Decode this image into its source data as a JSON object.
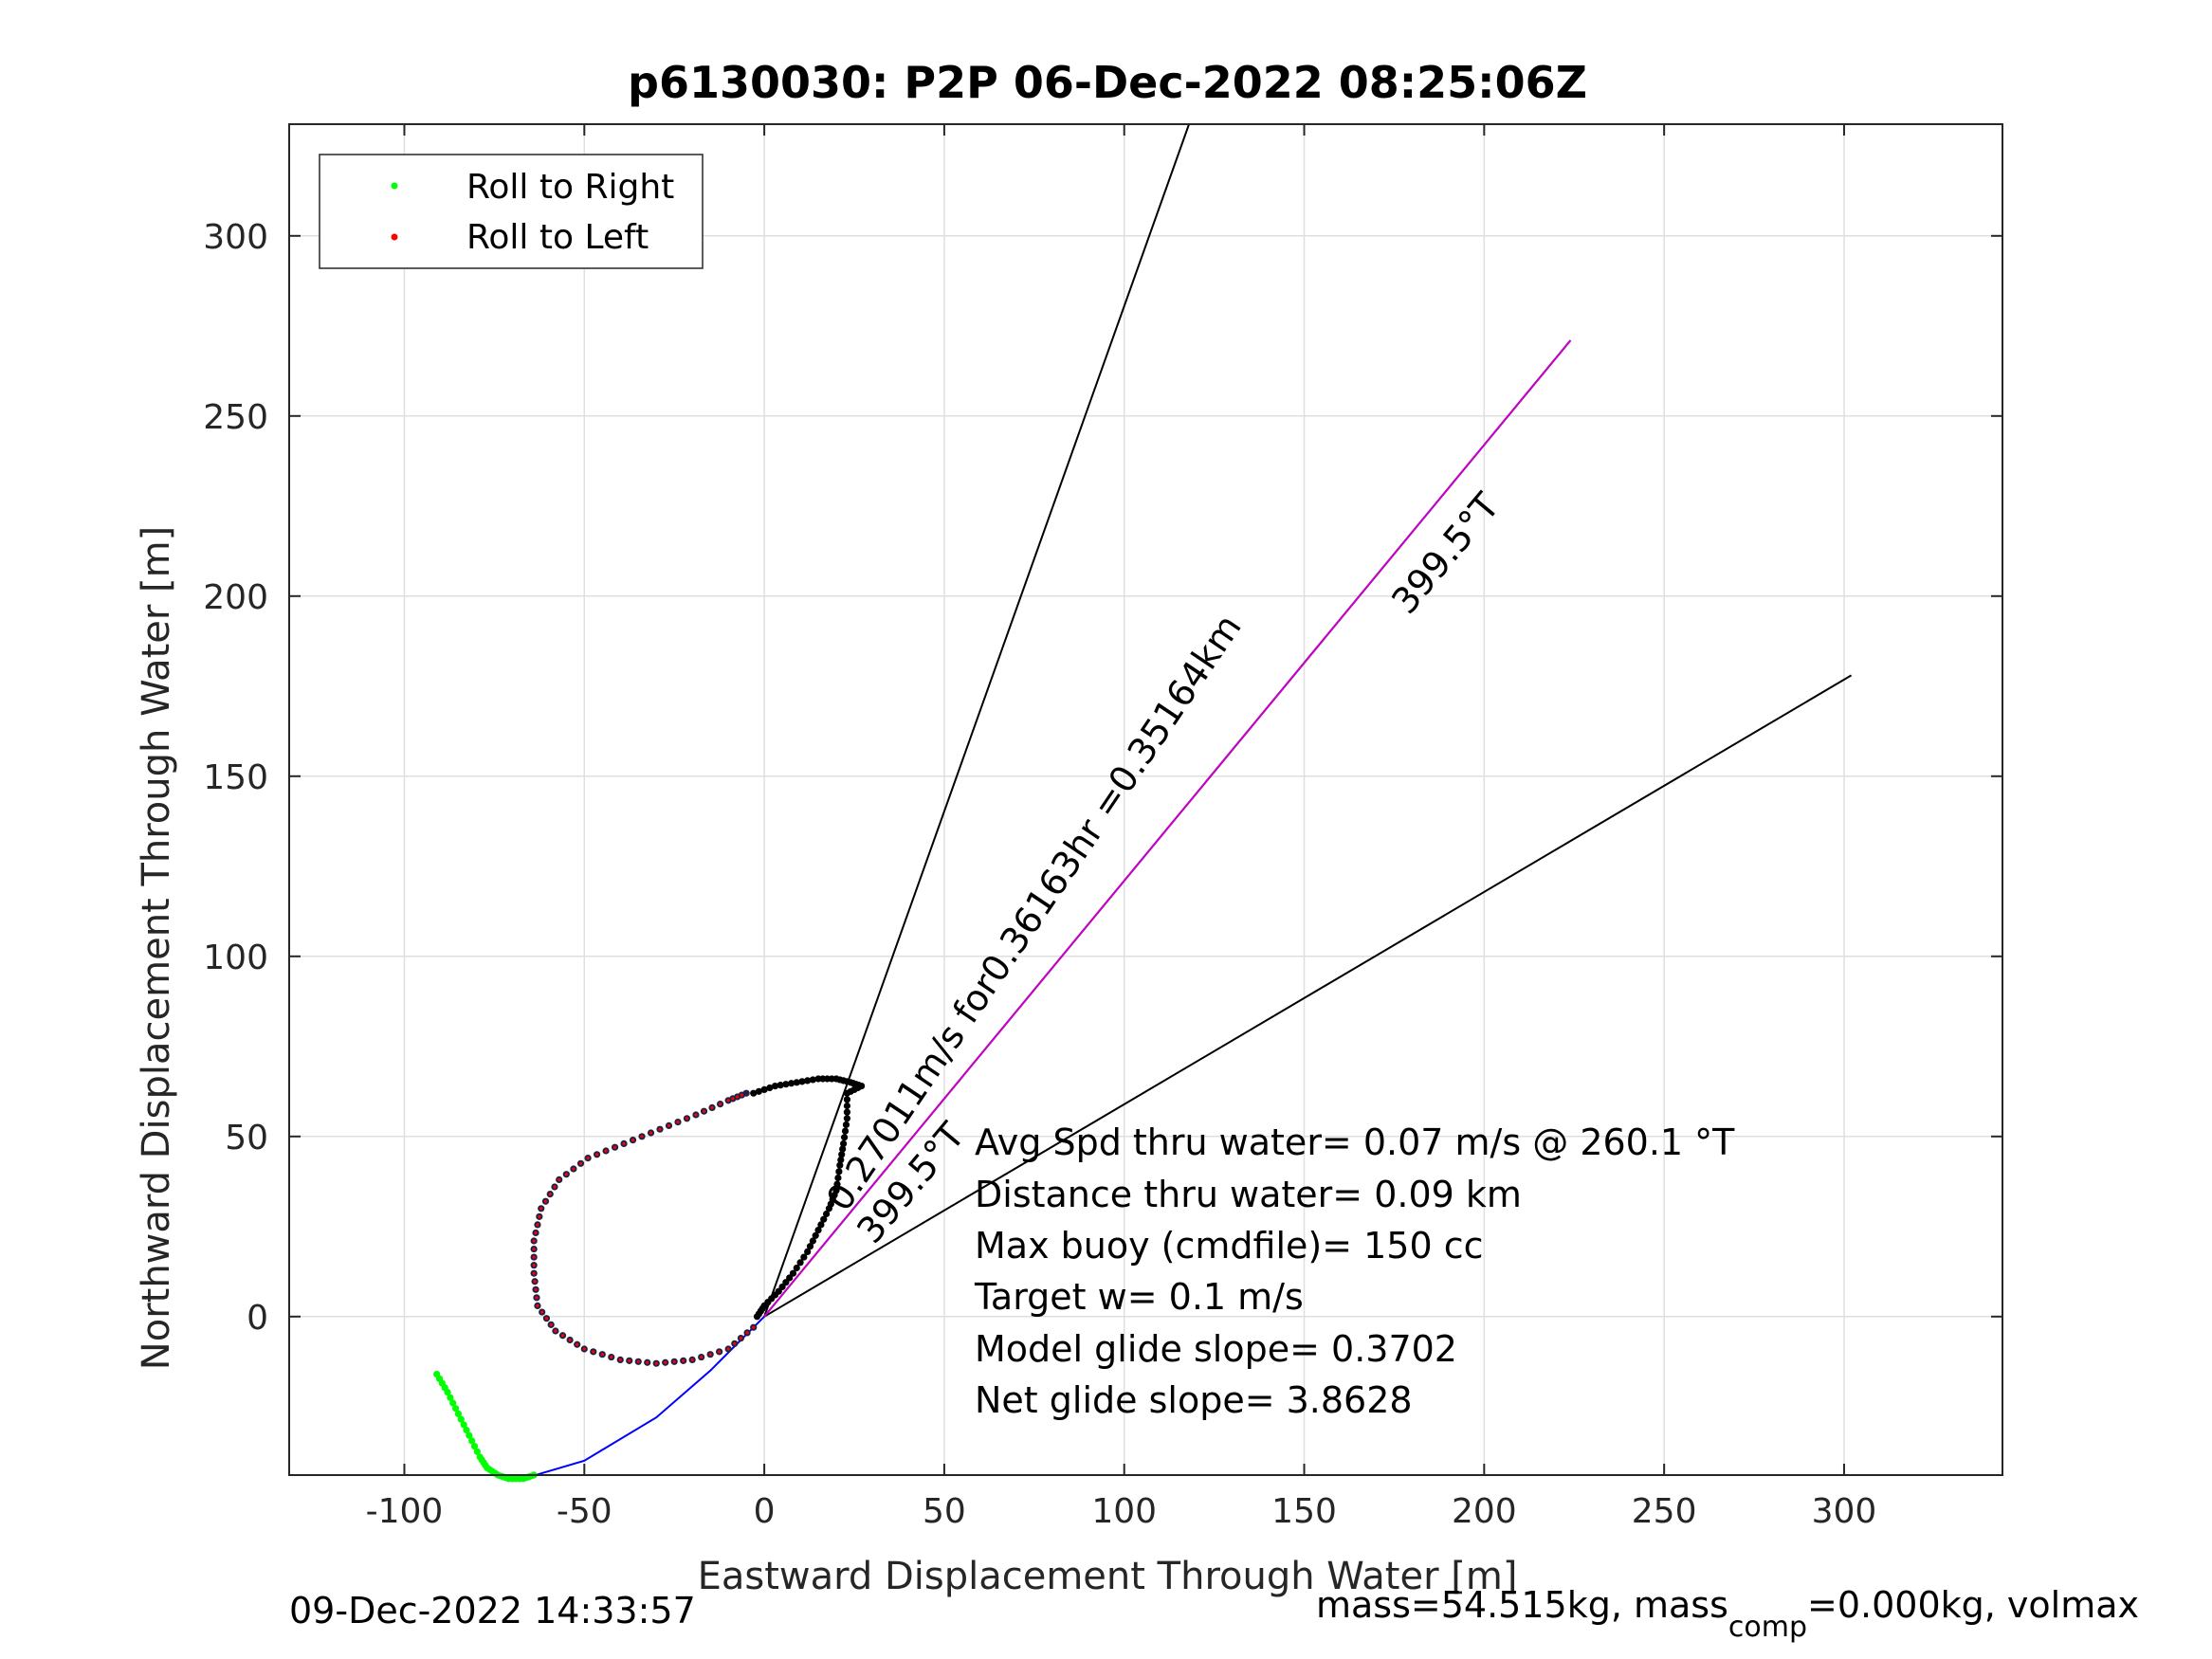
{
  "chart_data": {
    "type": "scatter",
    "title": "p6130030: P2P 06-Dec-2022 08:25:06Z",
    "xlabel": "Eastward Displacement Through Water [m]",
    "ylabel": "Northward Displacement Through Water [m]",
    "xlim": [
      -132,
      344
    ],
    "ylim": [
      -44,
      331
    ],
    "xticks": [
      -100,
      -50,
      0,
      50,
      100,
      150,
      200,
      250,
      300
    ],
    "yticks": [
      0,
      50,
      100,
      150,
      200,
      250,
      300
    ],
    "grid": true,
    "legend_position": "top-left",
    "legend": [
      {
        "label": "Roll to Right",
        "color": "#00ff00"
      },
      {
        "label": "Roll to Left",
        "color": "#ff0000"
      }
    ],
    "series": [
      {
        "name": "Roll to Right",
        "color": "#00ff00",
        "points": [
          [
            -91,
            -16
          ],
          [
            -88,
            -21
          ],
          [
            -85,
            -27
          ],
          [
            -82,
            -33
          ],
          [
            -79,
            -39
          ],
          [
            -77,
            -42
          ],
          [
            -74,
            -44
          ],
          [
            -71,
            -45
          ],
          [
            -67,
            -45
          ],
          [
            -64,
            -44
          ]
        ]
      },
      {
        "name": "Roll to Left",
        "color": "#ff0000",
        "points": [
          [
            -3,
            -3
          ],
          [
            -10,
            -9
          ],
          [
            -20,
            -12
          ],
          [
            -30,
            -13
          ],
          [
            -40,
            -12
          ],
          [
            -50,
            -9
          ],
          [
            -58,
            -4
          ],
          [
            -63,
            3
          ],
          [
            -64,
            12
          ],
          [
            -64,
            21
          ],
          [
            -62,
            30
          ],
          [
            -57,
            38
          ],
          [
            -49,
            44
          ],
          [
            -39,
            48
          ],
          [
            -29,
            52
          ],
          [
            -19,
            56
          ],
          [
            -10,
            60
          ],
          [
            -5,
            62
          ]
        ]
      },
      {
        "name": "",
        "color": "#000000",
        "points": [
          [
            -3,
            62
          ],
          [
            3,
            64
          ],
          [
            9,
            65
          ],
          [
            15,
            66
          ],
          [
            20,
            66
          ],
          [
            24,
            65
          ],
          [
            27,
            64
          ],
          [
            23,
            62
          ],
          [
            23,
            55
          ],
          [
            22,
            48
          ],
          [
            21,
            42
          ],
          [
            20,
            35
          ],
          [
            18,
            30
          ],
          [
            15,
            24
          ],
          [
            12,
            18
          ],
          [
            8,
            12
          ],
          [
            4,
            7
          ],
          [
            0,
            3
          ],
          [
            -2,
            0
          ]
        ]
      }
    ],
    "lines": [
      {
        "name": "",
        "color": "#000000",
        "from": [
          0,
          0
        ],
        "to": [
          118,
          331
        ]
      },
      {
        "name": "",
        "color": "#000000",
        "from": [
          0,
          0
        ],
        "to": [
          224,
          271
        ]
      },
      {
        "name": "",
        "color": "#000000",
        "from": [
          0,
          0
        ],
        "to": [
          302,
          178
        ]
      },
      {
        "name": "",
        "color": "#cc00cc",
        "from": [
          0,
          0
        ],
        "to": [
          224,
          271
        ]
      },
      {
        "name": "",
        "color": "#0000ff",
        "curve": [
          [
            -67,
            -45
          ],
          [
            -50,
            -40
          ],
          [
            -30,
            -28
          ],
          [
            -15,
            -15
          ],
          [
            -5,
            -5
          ],
          [
            0,
            0
          ]
        ]
      }
    ],
    "annotations": {
      "heading_upper": "399.5°T",
      "heading_lower": "399.5°T",
      "speed_label": "0.27011m/s for0.36163hr =0.35164km"
    },
    "stats": [
      "Avg Spd thru water=  0.07 m/s @ 260.1 °T",
      "Distance thru water=  0.09 km",
      "Max buoy (cmdfile)= 150 cc",
      "Target w= 0.1 m/s",
      "Model glide slope= 0.3702",
      "Net glide slope= 3.8628"
    ],
    "footer": {
      "timestamp": "09-Dec-2022 14:33:57",
      "mass_prefix": "mass=54.515kg, mass",
      "mass_sub": "comp",
      "mass_suffix": "=0.000kg, volmax"
    }
  }
}
